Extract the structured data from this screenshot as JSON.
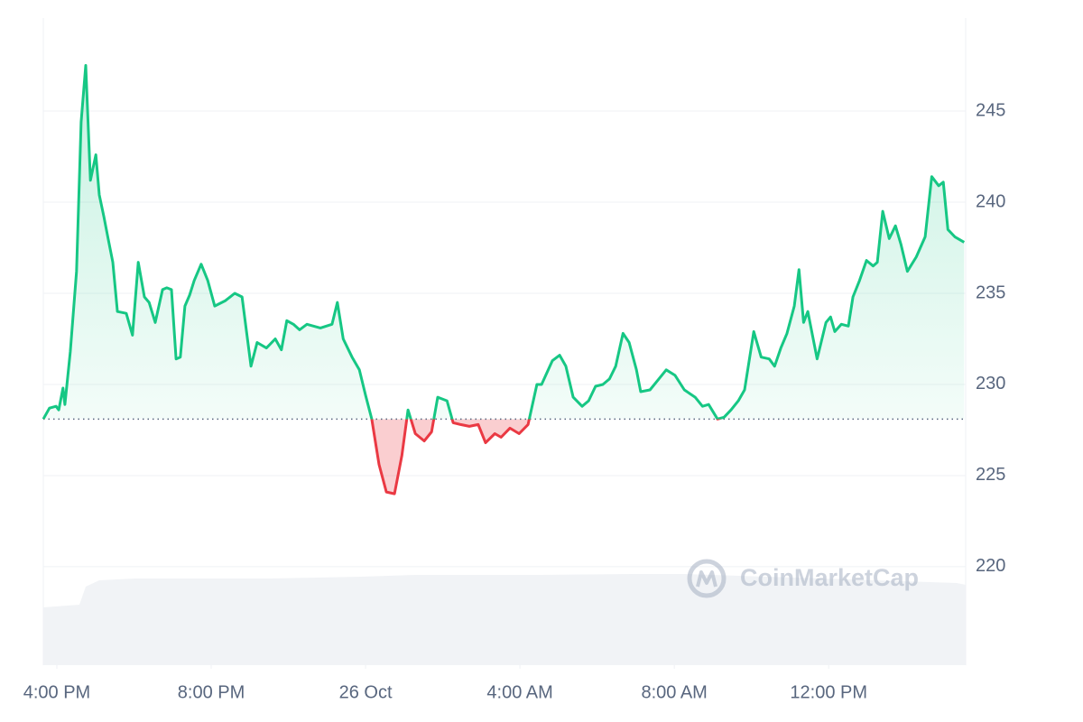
{
  "chart_data": {
    "type": "line",
    "watermark": "CoinMarketCap",
    "color": "#16c784",
    "color_below": "#ea3943",
    "baseline": 228.1,
    "xlim": [
      15.65,
      39.55
    ],
    "ylim": [
      214.6,
      250.1
    ],
    "yticks": [
      220,
      225,
      230,
      235,
      240,
      245
    ],
    "xticks": [
      {
        "value": 16,
        "label": "4:00 PM"
      },
      {
        "value": 20,
        "label": "8:00 PM"
      },
      {
        "value": 24,
        "label": "26 Oct"
      },
      {
        "value": 28,
        "label": "4:00 AM"
      },
      {
        "value": 32,
        "label": "8:00 AM"
      },
      {
        "value": 36,
        "label": "12:00 PM"
      }
    ],
    "grid": true,
    "x": [
      15.65,
      15.81,
      15.98,
      16.05,
      16.16,
      16.21,
      16.35,
      16.51,
      16.63,
      16.75,
      16.87,
      17.01,
      17.1,
      17.22,
      17.33,
      17.45,
      17.57,
      17.8,
      17.96,
      18.11,
      18.27,
      18.39,
      18.55,
      18.74,
      18.85,
      18.97,
      19.09,
      19.2,
      19.32,
      19.44,
      19.56,
      19.74,
      19.91,
      20.09,
      20.37,
      20.61,
      20.8,
      20.89,
      21.03,
      21.19,
      21.43,
      21.66,
      21.82,
      21.96,
      22.13,
      22.29,
      22.48,
      22.83,
      23.13,
      23.27,
      23.42,
      23.65,
      23.84,
      24.0,
      24.16,
      24.35,
      24.54,
      24.75,
      24.94,
      25.1,
      25.29,
      25.52,
      25.71,
      25.87,
      26.11,
      26.27,
      26.46,
      26.69,
      26.92,
      27.11,
      27.35,
      27.51,
      27.74,
      27.98,
      28.21,
      28.44,
      28.56,
      28.84,
      29.03,
      29.19,
      29.38,
      29.61,
      29.78,
      29.96,
      30.15,
      30.32,
      30.48,
      30.67,
      30.83,
      31.02,
      31.13,
      31.37,
      31.6,
      31.79,
      32.02,
      32.26,
      32.54,
      32.73,
      32.89,
      33.12,
      33.29,
      33.47,
      33.66,
      33.82,
      34.06,
      34.25,
      34.46,
      34.6,
      34.76,
      34.92,
      35.11,
      35.23,
      35.35,
      35.46,
      35.7,
      35.93,
      36.05,
      36.16,
      36.33,
      36.51,
      36.63,
      36.8,
      36.98,
      37.15,
      37.26,
      37.4,
      37.57,
      37.73,
      37.87,
      38.04,
      38.27,
      38.5,
      38.67,
      38.85,
      38.97,
      39.09,
      39.27,
      39.51
    ],
    "values": [
      228.1,
      228.7,
      228.8,
      228.6,
      229.8,
      228.9,
      231.8,
      236.2,
      244.4,
      247.5,
      241.2,
      242.6,
      240.4,
      239.2,
      238.0,
      236.7,
      234.0,
      233.9,
      232.7,
      236.7,
      234.8,
      234.5,
      233.4,
      235.2,
      235.3,
      235.2,
      231.4,
      231.5,
      234.3,
      234.9,
      235.7,
      236.6,
      235.7,
      234.3,
      234.6,
      235.0,
      234.8,
      233.3,
      231.0,
      232.3,
      232.0,
      232.5,
      231.9,
      233.5,
      233.3,
      233.0,
      233.3,
      233.1,
      233.3,
      234.5,
      232.5,
      231.5,
      230.8,
      229.4,
      228.1,
      225.6,
      224.1,
      224.0,
      226.1,
      228.6,
      227.3,
      226.9,
      227.4,
      229.3,
      229.1,
      227.9,
      227.8,
      227.7,
      227.8,
      226.8,
      227.3,
      227.1,
      227.6,
      227.3,
      227.8,
      230.0,
      230.0,
      231.3,
      231.6,
      231.0,
      229.3,
      228.8,
      229.1,
      229.9,
      230.0,
      230.3,
      231.0,
      232.8,
      232.3,
      230.8,
      229.6,
      229.7,
      230.3,
      230.8,
      230.5,
      229.7,
      229.3,
      228.8,
      228.9,
      228.1,
      228.2,
      228.6,
      229.1,
      229.7,
      232.9,
      231.5,
      231.4,
      231.0,
      232.0,
      232.8,
      234.3,
      236.3,
      233.4,
      234.0,
      231.4,
      233.4,
      233.7,
      232.9,
      233.3,
      233.2,
      234.8,
      235.7,
      236.8,
      236.5,
      236.7,
      239.5,
      238.0,
      238.7,
      237.7,
      236.2,
      237.0,
      238.1,
      241.4,
      240.9,
      241.1,
      238.5,
      238.1,
      237.8
    ]
  }
}
